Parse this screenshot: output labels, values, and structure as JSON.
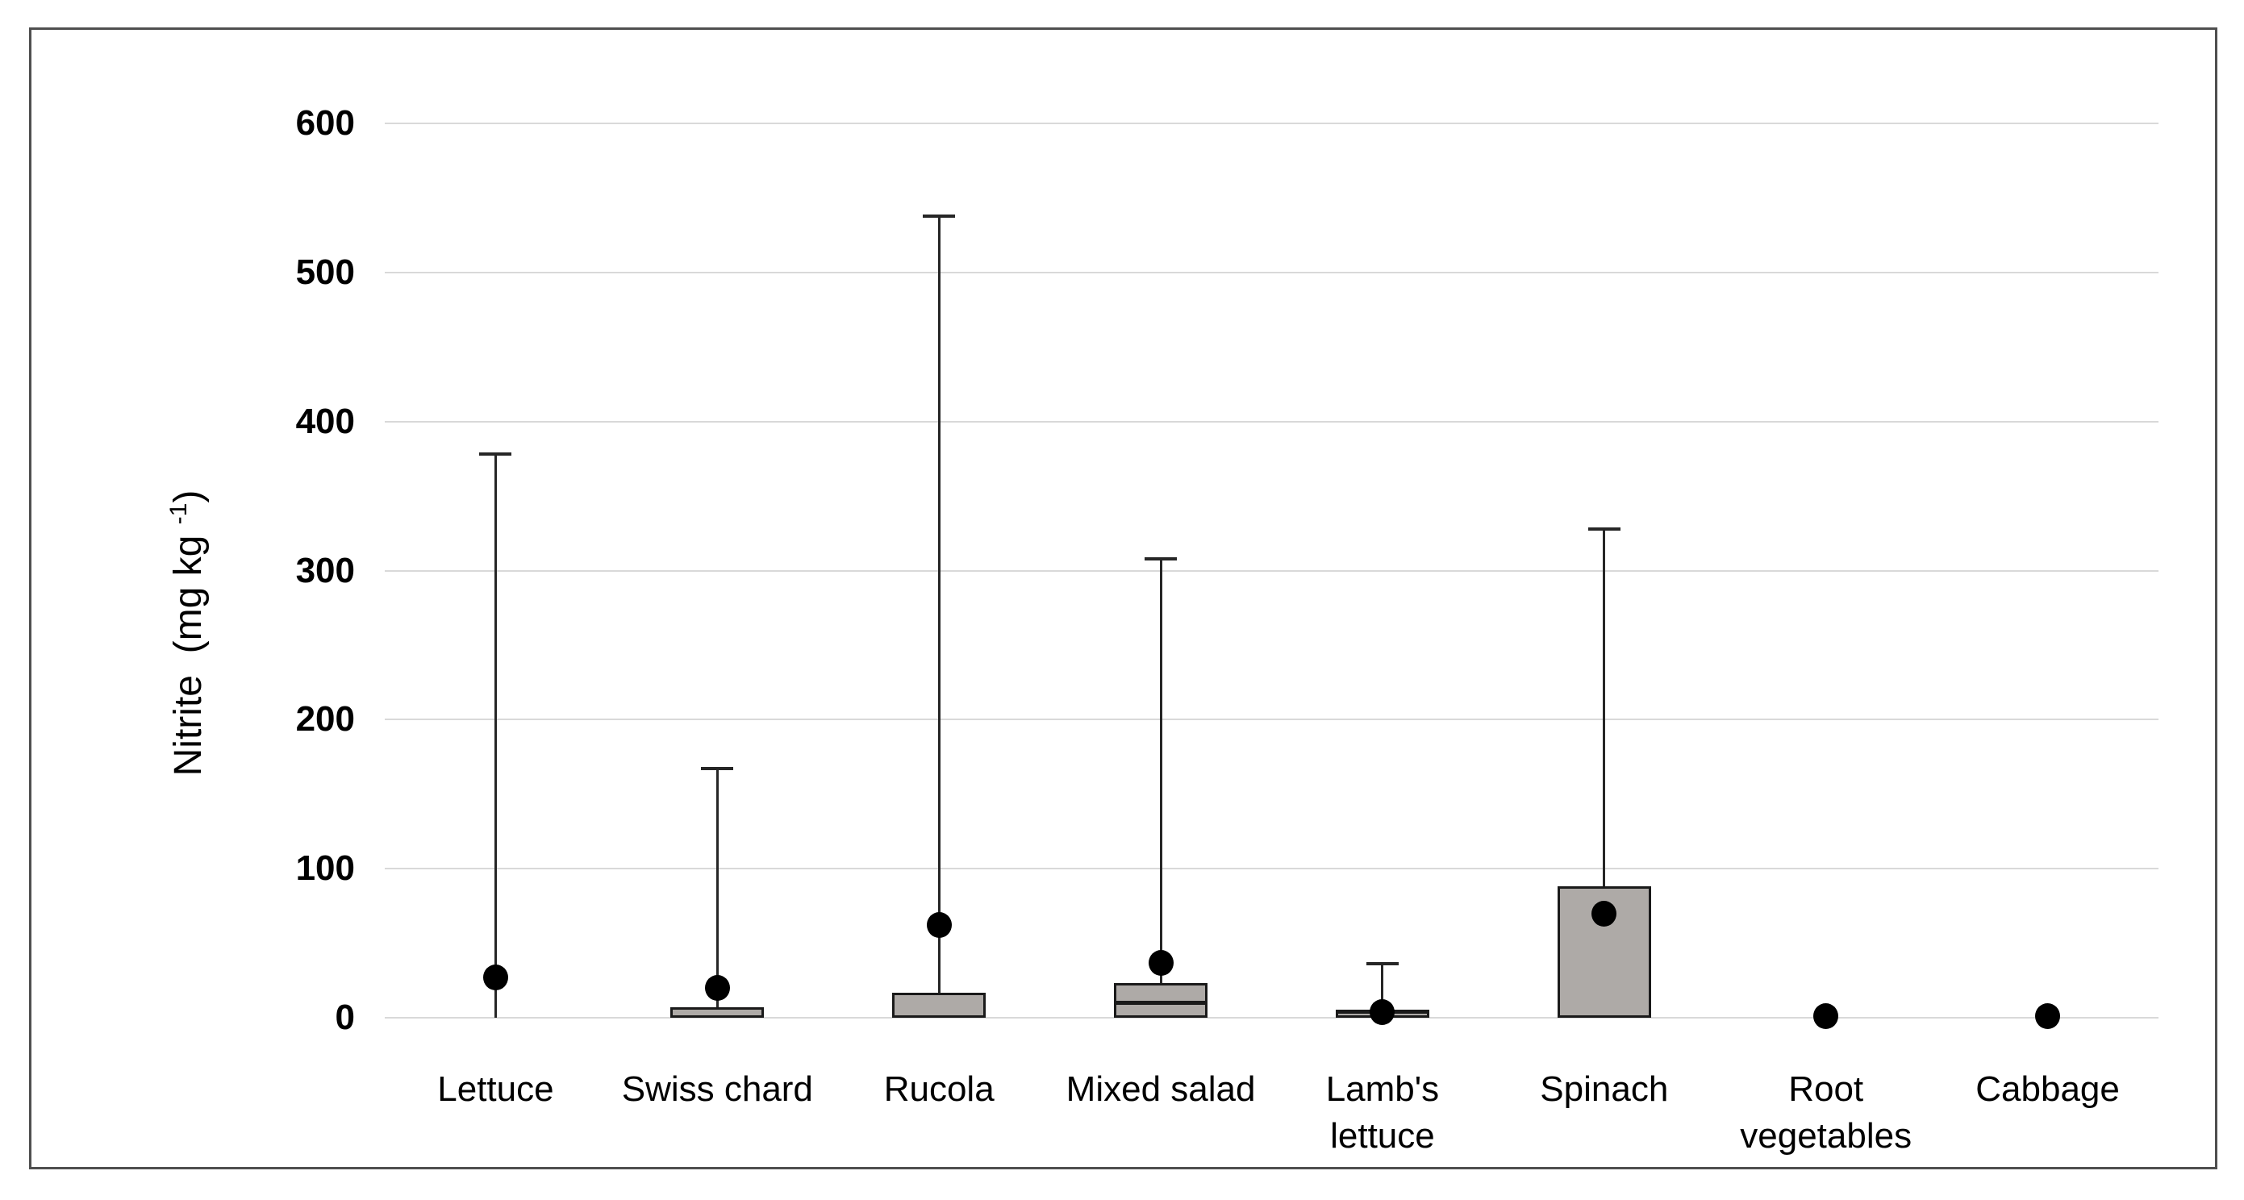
{
  "chart_data": {
    "type": "box",
    "title": "",
    "ylabel": {
      "main": "Nitrite  (mg kg ",
      "sup": "-1",
      "close": ")"
    },
    "ylim": [
      0,
      600
    ],
    "yticks": [
      "0",
      "100",
      "200",
      "300",
      "400",
      "500",
      "600"
    ],
    "grid": "horizontal",
    "legend": "none",
    "categories": [
      {
        "label": [
          "Lettuce"
        ],
        "whisker_top": 378,
        "box_top": null,
        "box_bottom": 0,
        "median": null,
        "mean": 27
      },
      {
        "label": [
          "Swiss chard"
        ],
        "whisker_top": 167,
        "box_top": 7,
        "box_bottom": 0,
        "median": null,
        "mean": 20
      },
      {
        "label": [
          "Rucola"
        ],
        "whisker_top": 538,
        "box_top": 17,
        "box_bottom": 0,
        "median": null,
        "mean": 62
      },
      {
        "label": [
          "Mixed  salad"
        ],
        "whisker_top": 308,
        "box_top": 23,
        "box_bottom": 0,
        "median": 10,
        "mean": 37
      },
      {
        "label": [
          "Lamb's",
          "lettuce"
        ],
        "whisker_top": 36,
        "box_top": 5,
        "box_bottom": 0,
        "median": 4,
        "mean": 4
      },
      {
        "label": [
          "Spinach"
        ],
        "whisker_top": 328,
        "box_top": 88,
        "box_bottom": 0,
        "median": null,
        "mean": 70
      },
      {
        "label": [
          "Root",
          "vegetables"
        ],
        "whisker_top": null,
        "box_top": null,
        "box_bottom": null,
        "median": null,
        "mean": 1
      },
      {
        "label": [
          "Cabbage"
        ],
        "whisker_top": null,
        "box_top": null,
        "box_bottom": null,
        "median": null,
        "mean": 1
      }
    ],
    "colors": {
      "box_fill": "#aeaaa7",
      "box_border": "#1a1a1a",
      "whisker": "#262626",
      "mean_dot": "#000000",
      "gridline": "#d9d9d9",
      "figure_border": "#4f4f4f"
    }
  }
}
